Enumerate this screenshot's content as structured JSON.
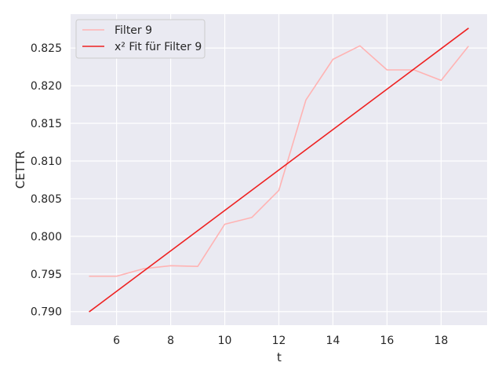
{
  "chart_data": {
    "type": "line",
    "title": "",
    "xlabel": "t",
    "ylabel": "CETTR",
    "xlim": [
      4.3,
      19.7
    ],
    "ylim": [
      0.7882,
      0.8295
    ],
    "xticks": [
      6,
      8,
      10,
      12,
      14,
      16,
      18
    ],
    "yticks": [
      0.79,
      0.795,
      0.8,
      0.805,
      0.81,
      0.815,
      0.82,
      0.825
    ],
    "grid": true,
    "legend_position": "top-left",
    "background_color": "#eaeaf2",
    "series": [
      {
        "name": "Filter 9",
        "color": "#ffb3b3",
        "x": [
          5,
          6,
          7,
          8,
          9,
          10,
          11,
          12,
          13,
          14,
          15,
          16,
          17,
          18,
          19
        ],
        "y": [
          0.7947,
          0.7947,
          0.7957,
          0.7961,
          0.796,
          0.8016,
          0.8025,
          0.8061,
          0.8181,
          0.8235,
          0.8253,
          0.8221,
          0.8221,
          0.8207,
          0.8252
        ]
      },
      {
        "name": "x² Fit für Filter 9",
        "color": "#ee2222",
        "x": [
          5,
          19
        ],
        "y": [
          0.79,
          0.8276
        ]
      }
    ]
  }
}
